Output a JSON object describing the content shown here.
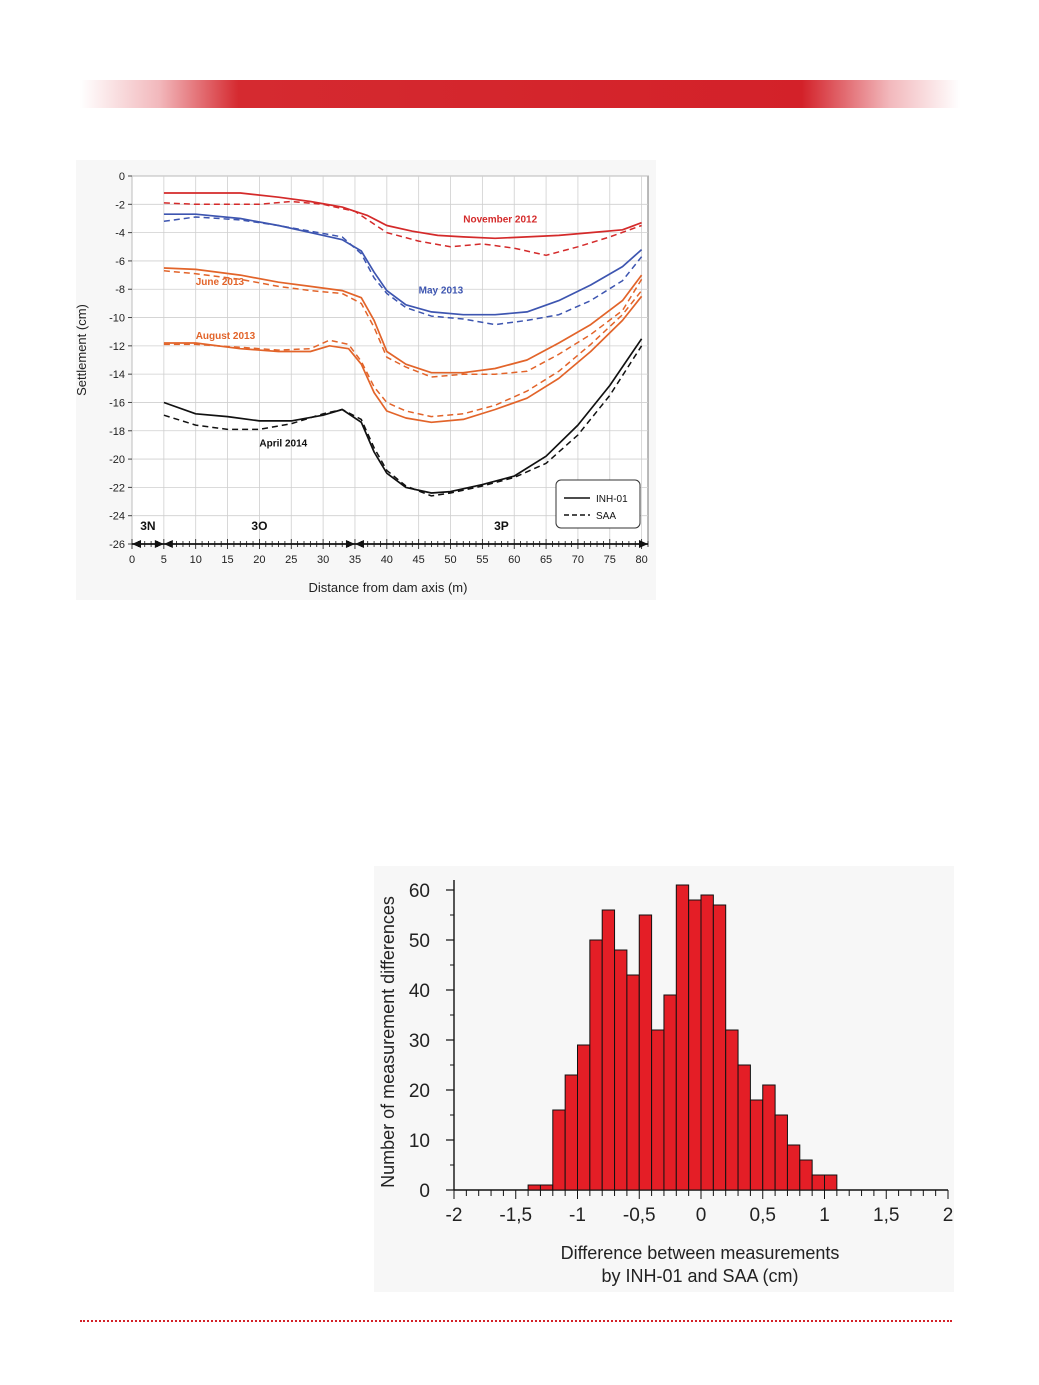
{
  "colors": {
    "accent": "#d32129",
    "nov2012": "#d42a2a",
    "may2013": "#3d55b0",
    "orange": "#e2642a",
    "black": "#111111",
    "hist_bar": "#e41e26"
  },
  "chart_data": [
    {
      "type": "line",
      "xlabel": "Distance from dam axis (m)",
      "ylabel": "Settlement (cm)",
      "xlim": [
        0,
        81
      ],
      "ylim": [
        -26,
        0
      ],
      "xticks": [
        0,
        5,
        10,
        15,
        20,
        25,
        30,
        35,
        40,
        45,
        50,
        55,
        60,
        65,
        70,
        75,
        80
      ],
      "yticks": [
        0,
        -2,
        -4,
        -6,
        -8,
        -10,
        -12,
        -14,
        -16,
        -18,
        -20,
        -22,
        -24,
        -26
      ],
      "legend_position": "bottom-right",
      "legend": [
        {
          "label": "INH-01",
          "style": "solid"
        },
        {
          "label": "SAA",
          "style": "dashed"
        }
      ],
      "zones": [
        {
          "label": "3N",
          "from": 0,
          "to": 5
        },
        {
          "label": "3O",
          "from": 5,
          "to": 35
        },
        {
          "label": "3P",
          "from": 35,
          "to": 81
        }
      ],
      "series": [
        {
          "name": "November 2012",
          "color": "#d42a2a",
          "instrument": "INH-01",
          "x": [
            5,
            10,
            17,
            23,
            28,
            33,
            37,
            40,
            44,
            48,
            52,
            57,
            62,
            67,
            72,
            77,
            80
          ],
          "y": [
            -1.2,
            -1.2,
            -1.2,
            -1.5,
            -1.8,
            -2.2,
            -2.8,
            -3.5,
            -3.9,
            -4.2,
            -4.3,
            -4.4,
            -4.3,
            -4.2,
            -4,
            -3.8,
            -3.3
          ]
        },
        {
          "name": "November 2012",
          "color": "#d42a2a",
          "instrument": "SAA",
          "x": [
            5,
            10,
            15,
            20,
            25,
            30,
            35,
            40,
            45,
            50,
            55,
            60,
            65,
            70,
            75,
            80
          ],
          "y": [
            -1.9,
            -2,
            -2,
            -2,
            -1.8,
            -2,
            -2.5,
            -4,
            -4.6,
            -5,
            -4.8,
            -5.1,
            -5.6,
            -5,
            -4.3,
            -3.5
          ]
        },
        {
          "name": "May 2013",
          "color": "#3d55b0",
          "instrument": "INH-01",
          "x": [
            5,
            10,
            17,
            23,
            28,
            33,
            36,
            38,
            40,
            43,
            47,
            52,
            57,
            62,
            67,
            72,
            77,
            80
          ],
          "y": [
            -2.7,
            -2.7,
            -3,
            -3.5,
            -4,
            -4.5,
            -5.3,
            -6.8,
            -8.1,
            -9.1,
            -9.6,
            -9.8,
            -9.8,
            -9.6,
            -8.8,
            -7.7,
            -6.4,
            -5.2
          ]
        },
        {
          "name": "May 2013",
          "color": "#3d55b0",
          "instrument": "SAA",
          "x": [
            5,
            10,
            17,
            23,
            28,
            33,
            36,
            38,
            40,
            43,
            47,
            52,
            57,
            62,
            67,
            72,
            77,
            80
          ],
          "y": [
            -3.2,
            -2.9,
            -3.1,
            -3.5,
            -3.9,
            -4.3,
            -5.5,
            -7.2,
            -8.3,
            -9.3,
            -9.9,
            -10.1,
            -10.5,
            -10.2,
            -9.8,
            -8.8,
            -7.4,
            -5.7
          ]
        },
        {
          "name": "June 2013",
          "color": "#e2642a",
          "instrument": "INH-01",
          "x": [
            5,
            10,
            17,
            23,
            28,
            33,
            36,
            38,
            40,
            43,
            47,
            52,
            57,
            62,
            67,
            72,
            77,
            80
          ],
          "y": [
            -6.5,
            -6.6,
            -7,
            -7.5,
            -7.8,
            -8.1,
            -8.6,
            -10.2,
            -12.4,
            -13.3,
            -13.9,
            -13.9,
            -13.6,
            -13,
            -11.8,
            -10.5,
            -8.8,
            -7
          ]
        },
        {
          "name": "June 2013",
          "color": "#e2642a",
          "instrument": "SAA",
          "x": [
            5,
            10,
            17,
            23,
            28,
            33,
            36,
            38,
            40,
            43,
            47,
            52,
            57,
            62,
            67,
            72,
            77,
            80
          ],
          "y": [
            -6.7,
            -6.9,
            -7.3,
            -7.8,
            -8.1,
            -8.3,
            -9,
            -10.7,
            -12.8,
            -13.5,
            -14.2,
            -14,
            -14,
            -13.8,
            -12.6,
            -11.2,
            -9.5,
            -7.3
          ]
        },
        {
          "name": "August 2013",
          "color": "#e2642a",
          "instrument": "INH-01",
          "x": [
            5,
            10,
            17,
            23,
            28,
            31,
            34,
            36,
            38,
            40,
            43,
            47,
            52,
            57,
            62,
            67,
            72,
            77,
            80
          ],
          "y": [
            -11.8,
            -11.8,
            -12.2,
            -12.4,
            -12.4,
            -12,
            -12.2,
            -13.3,
            -15.3,
            -16.6,
            -17.1,
            -17.4,
            -17.2,
            -16.5,
            -15.7,
            -14.3,
            -12.4,
            -10.2,
            -8.5
          ]
        },
        {
          "name": "August 2013",
          "color": "#e2642a",
          "instrument": "SAA",
          "x": [
            5,
            10,
            17,
            23,
            28,
            31,
            34,
            36,
            38,
            40,
            43,
            47,
            52,
            57,
            62,
            67,
            72,
            77,
            80
          ],
          "y": [
            -11.9,
            -11.9,
            -12.1,
            -12.3,
            -12.2,
            -11.6,
            -11.9,
            -13.1,
            -14.9,
            -16,
            -16.6,
            -17,
            -16.8,
            -16.2,
            -15.2,
            -13.8,
            -11.9,
            -9.8,
            -8.1
          ]
        },
        {
          "name": "April 2014",
          "color": "#111111",
          "instrument": "INH-01",
          "x": [
            5,
            10,
            15,
            20,
            25,
            30,
            33,
            36,
            38,
            40,
            43,
            47,
            50,
            55,
            60,
            65,
            70,
            75,
            80
          ],
          "y": [
            -16,
            -16.8,
            -17,
            -17.3,
            -17.3,
            -16.9,
            -16.5,
            -17.4,
            -19.5,
            -21,
            -22,
            -22.4,
            -22.3,
            -21.8,
            -21.2,
            -19.8,
            -17.6,
            -14.8,
            -11.5
          ]
        },
        {
          "name": "April 2014",
          "color": "#111111",
          "instrument": "SAA",
          "x": [
            5,
            10,
            15,
            20,
            25,
            30,
            33,
            36,
            38,
            40,
            43,
            47,
            50,
            55,
            60,
            65,
            70,
            75,
            80
          ],
          "y": [
            -16.9,
            -17.6,
            -17.9,
            -17.9,
            -17.5,
            -16.8,
            -16.5,
            -17.2,
            -19.2,
            -20.8,
            -21.9,
            -22.6,
            -22.4,
            -21.9,
            -21.3,
            -20.3,
            -18.3,
            -15.5,
            -12
          ]
        }
      ]
    },
    {
      "type": "bar",
      "xlabel_line1": "Difference between measurements",
      "xlabel_line2": "by INH-01 and SAA (cm)",
      "ylabel": "Number of measurement differences",
      "xlim": [
        -2,
        2
      ],
      "ylim": [
        0,
        62
      ],
      "xticks": [
        -2,
        -1.5,
        -1,
        -0.5,
        0,
        0.5,
        1,
        1.5,
        2
      ],
      "xtick_labels": [
        "-2",
        "-1,5",
        "-1",
        "-0,5",
        "0",
        "0,5",
        "1",
        "1,5",
        "2"
      ],
      "yticks": [
        0,
        10,
        20,
        30,
        40,
        50,
        60
      ],
      "bin_width": 0.1,
      "bin_starts": [
        -1.4,
        -1.3,
        -1.2,
        -1.1,
        -1.0,
        -0.9,
        -0.8,
        -0.7,
        -0.6,
        -0.5,
        -0.4,
        -0.3,
        -0.2,
        -0.1,
        0.0,
        0.1,
        0.2,
        0.3,
        0.4,
        0.5,
        0.6,
        0.7,
        0.8,
        0.9,
        1.0
      ],
      "values": [
        1,
        1,
        16,
        23,
        29,
        50,
        56,
        48,
        43,
        55,
        32,
        39,
        61,
        58,
        59,
        57,
        32,
        25,
        18,
        21,
        15,
        9,
        6,
        3,
        3
      ]
    }
  ]
}
